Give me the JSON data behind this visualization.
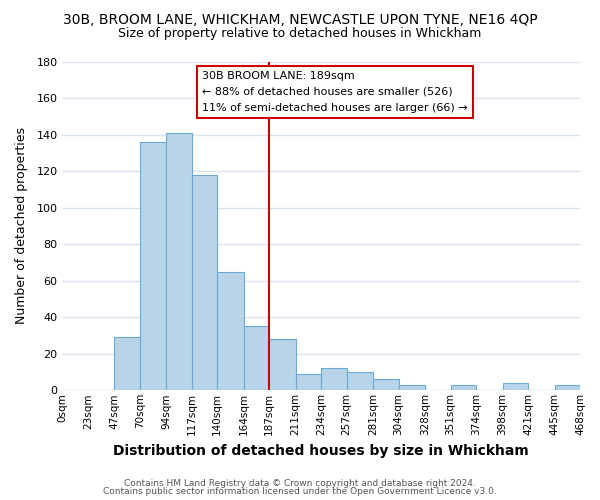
{
  "title": "30B, BROOM LANE, WHICKHAM, NEWCASTLE UPON TYNE, NE16 4QP",
  "subtitle": "Size of property relative to detached houses in Whickham",
  "xlabel": "Distribution of detached houses by size in Whickham",
  "ylabel": "Number of detached properties",
  "footer_line1": "Contains HM Land Registry data © Crown copyright and database right 2024.",
  "footer_line2": "Contains public sector information licensed under the Open Government Licence v3.0.",
  "bin_edges": [
    0,
    23,
    47,
    70,
    94,
    117,
    140,
    164,
    187,
    211,
    234,
    257,
    281,
    304,
    328,
    351,
    374,
    398,
    421,
    445,
    468
  ],
  "bin_labels": [
    "0sqm",
    "23sqm",
    "47sqm",
    "70sqm",
    "94sqm",
    "117sqm",
    "140sqm",
    "164sqm",
    "187sqm",
    "211sqm",
    "234sqm",
    "257sqm",
    "281sqm",
    "304sqm",
    "328sqm",
    "351sqm",
    "374sqm",
    "398sqm",
    "421sqm",
    "445sqm",
    "468sqm"
  ],
  "counts": [
    0,
    0,
    29,
    136,
    141,
    118,
    65,
    35,
    28,
    9,
    12,
    10,
    6,
    3,
    0,
    3,
    0,
    4,
    0,
    3
  ],
  "bar_color": "#b8d4e8",
  "bar_edge_color": "#6aaad4",
  "vline_x": 187,
  "vline_color": "#cc0000",
  "ylim": [
    0,
    180
  ],
  "yticks": [
    0,
    20,
    40,
    60,
    80,
    100,
    120,
    140,
    160,
    180
  ],
  "annotation_title": "30B BROOM LANE: 189sqm",
  "annotation_line1": "← 88% of detached houses are smaller (526)",
  "annotation_line2": "11% of semi-detached houses are larger (66) →",
  "annotation_box_color": "#ffffff",
  "annotation_box_edge_color": "#cc0000",
  "background_color": "#ffffff",
  "grid_color": "#d8e4f0",
  "title_fontsize": 10,
  "subtitle_fontsize": 9,
  "xlabel_fontsize": 10,
  "ylabel_fontsize": 9
}
